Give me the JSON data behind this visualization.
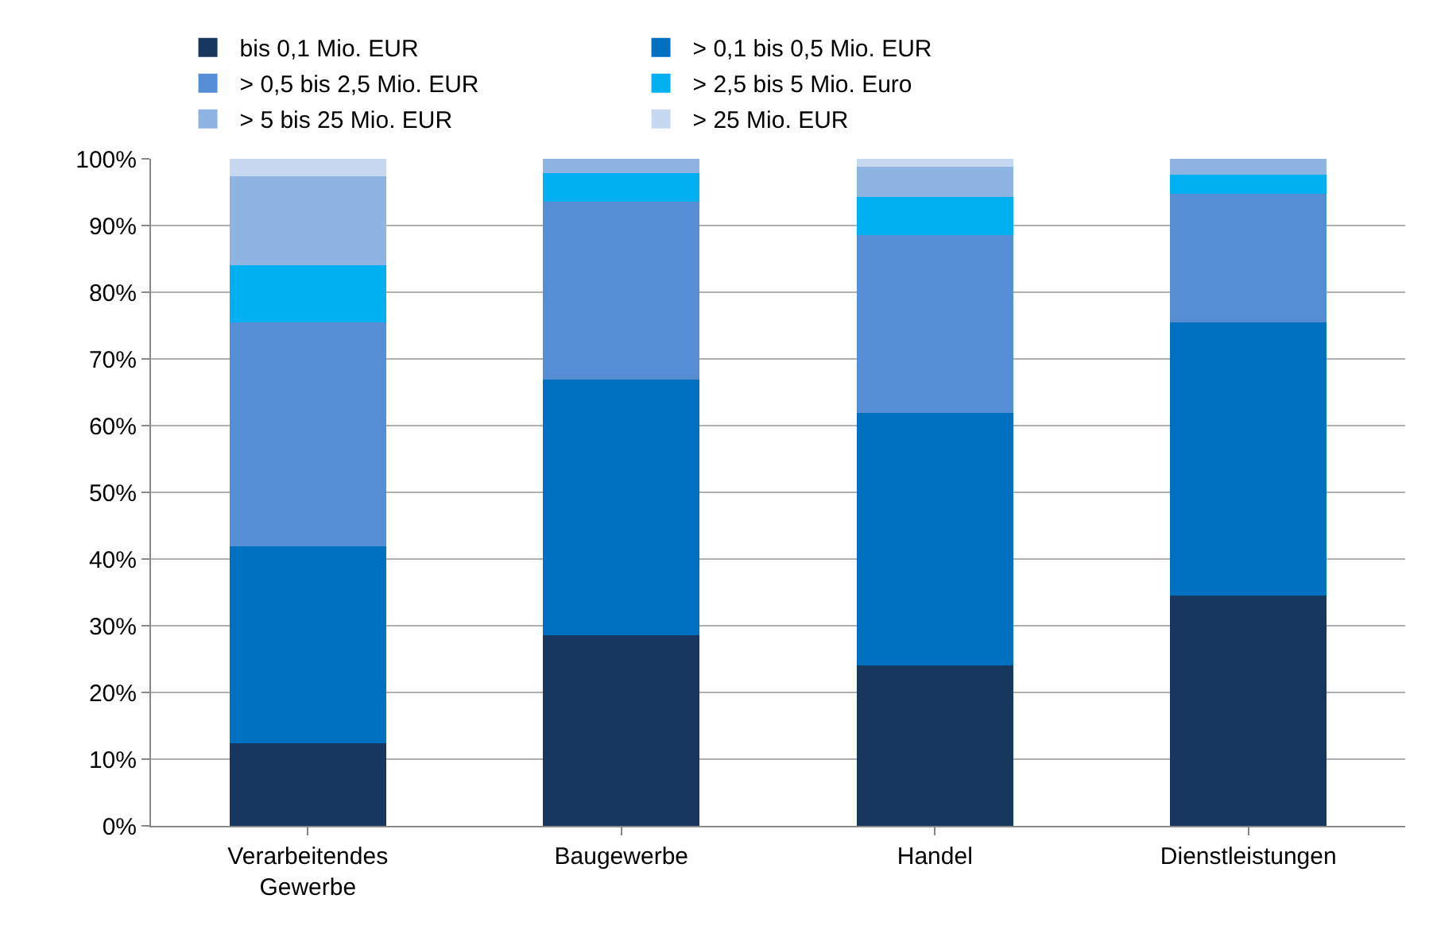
{
  "chart_data": {
    "type": "bar",
    "stacked": true,
    "categories": [
      "Verarbeitendes\nGewerbe",
      "Baugewerbe",
      "Handel",
      "Dienstleistungen"
    ],
    "series": [
      {
        "name": "bis 0,1 Mio. EUR",
        "color": "#17375e",
        "values": [
          12.4,
          28.6,
          24.0,
          34.5
        ]
      },
      {
        "name": "> 0,1 bis 0,5 Mio. EUR",
        "color": "#0070c0",
        "values": [
          29.5,
          38.3,
          37.9,
          41.0
        ]
      },
      {
        "name": "> 0,5 bis 2,5 Mio. EUR",
        "color": "#558ed5",
        "values": [
          33.6,
          26.7,
          26.7,
          19.3
        ]
      },
      {
        "name": "> 2,5 bis 5 Mio. Euro",
        "color": "#00b0f0",
        "values": [
          8.5,
          4.3,
          5.7,
          2.8
        ]
      },
      {
        "name": "> 5 bis 25 Mio. EUR",
        "color": "#8eb4e3",
        "values": [
          13.4,
          2.1,
          4.5,
          2.4
        ]
      },
      {
        "name": "> 25 Mio. EUR",
        "color": "#c6d9f1",
        "values": [
          2.6,
          0,
          1.2,
          0
        ]
      }
    ],
    "ylim": [
      0,
      100
    ],
    "yticks": [
      {
        "value": 0,
        "label": "0%"
      },
      {
        "value": 10,
        "label": "10%"
      },
      {
        "value": 20,
        "label": "20%"
      },
      {
        "value": 30,
        "label": "30%"
      },
      {
        "value": 40,
        "label": "40%"
      },
      {
        "value": 50,
        "label": "50%"
      },
      {
        "value": 60,
        "label": "60%"
      },
      {
        "value": 70,
        "label": "70%"
      },
      {
        "value": 80,
        "label": "80%"
      },
      {
        "value": 90,
        "label": "90%"
      },
      {
        "value": 100,
        "label": "100%"
      }
    ],
    "grid": "y",
    "legend": "top"
  }
}
